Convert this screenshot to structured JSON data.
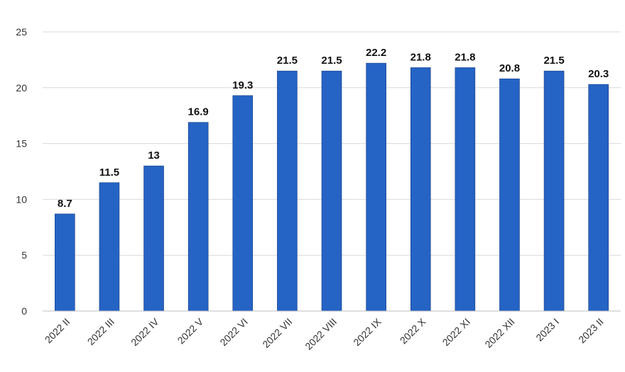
{
  "chart_data": {
    "type": "bar",
    "categories": [
      "2022 II",
      "2022 III",
      "2022 IV",
      "2022 V",
      "2022 VI",
      "2022 VII",
      "2022 VIII",
      "2022 IX",
      "2022 X",
      "2022 XI",
      "2022 XII",
      "2023 I",
      "2023 II"
    ],
    "values": [
      8.7,
      11.5,
      13,
      16.9,
      19.3,
      21.5,
      21.5,
      22.2,
      21.8,
      21.8,
      20.8,
      21.5,
      20.3
    ],
    "data_labels": [
      "8.7",
      "11.5",
      "13",
      "16.9",
      "19.3",
      "21.5",
      "21.5",
      "22.2",
      "21.8",
      "21.8",
      "20.8",
      "21.5",
      "20.3"
    ],
    "y_ticks": [
      0,
      5,
      10,
      15,
      20,
      25
    ],
    "ylim": [
      0,
      25
    ],
    "grid": true,
    "legend": "none",
    "colors": {
      "bar": "#2563C4",
      "bar_edge": "#1a3f80",
      "grid": "#d9d9d9",
      "axis": "#bfbfbf"
    }
  }
}
